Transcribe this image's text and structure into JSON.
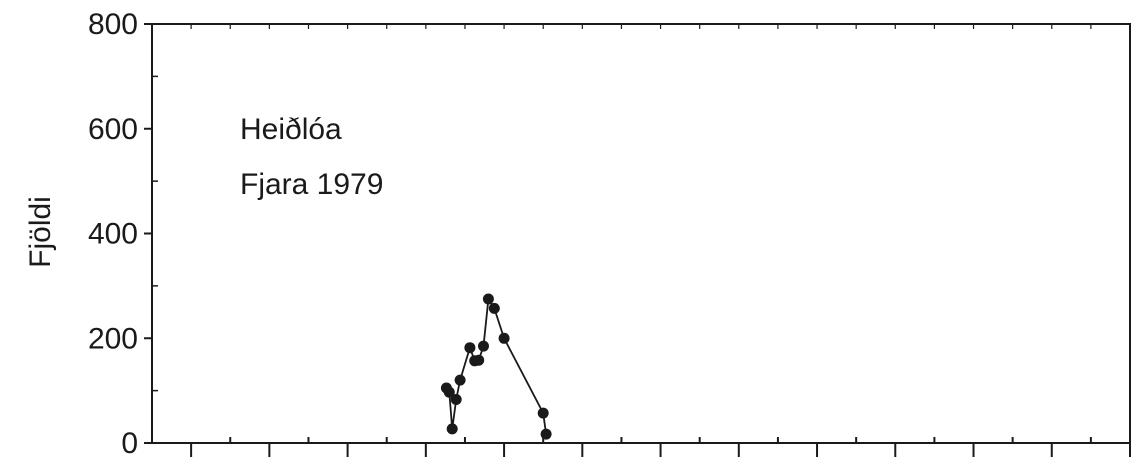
{
  "chart_data": {
    "type": "line",
    "title": "",
    "ylabel": "Fjöldi",
    "xlabel": "",
    "ylim": [
      0,
      800
    ],
    "xlim": [
      0,
      100
    ],
    "y_ticks": [
      0,
      200,
      400,
      600,
      800
    ],
    "x_ticks_count": 26,
    "grid": false,
    "annotation": [
      "Heiðlóa",
      "Fjara 1979"
    ],
    "colors": {
      "line": "#1a1a1a",
      "marker": "#1a1a1a",
      "axis": "#1a1a1a"
    },
    "series": [
      {
        "x": [
          30.1,
          30.4,
          30.7,
          31.1,
          31.5,
          32.5,
          33.0,
          33.4,
          33.9,
          34.4,
          35.0,
          36.0,
          40.0,
          40.3
        ],
        "y": [
          105,
          97,
          27,
          83,
          120,
          182,
          157,
          158,
          185,
          275,
          257,
          200,
          57,
          17
        ]
      }
    ]
  }
}
